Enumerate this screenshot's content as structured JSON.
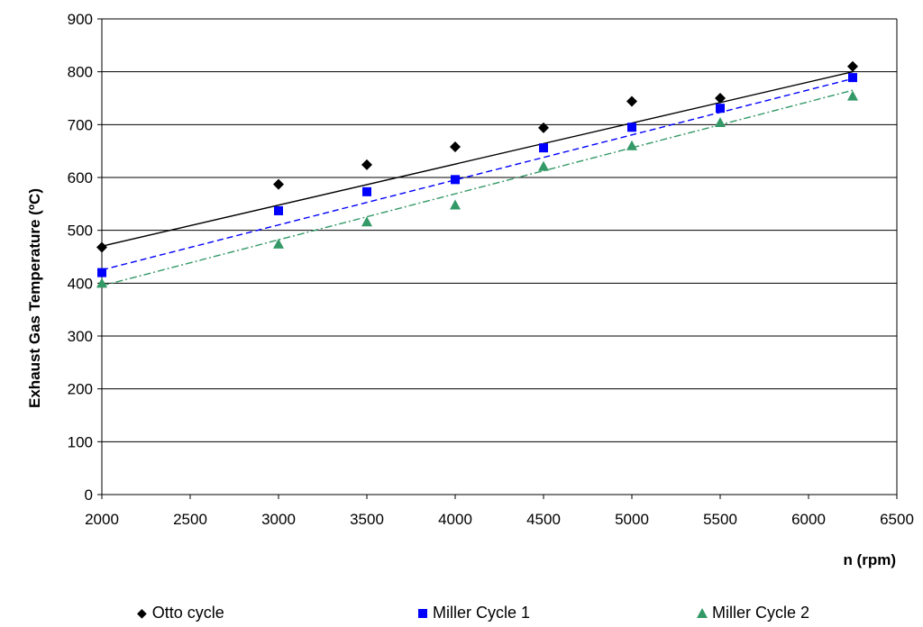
{
  "chart_data": {
    "type": "scatter",
    "title": "",
    "xlabel": "n (rpm)",
    "ylabel": "Exhaust Gas Temperature  (ºC)",
    "xlim": [
      2000,
      6500
    ],
    "ylim": [
      0,
      900
    ],
    "xticks": [
      2000,
      2500,
      3000,
      3500,
      4000,
      4500,
      5000,
      5500,
      6000,
      6500
    ],
    "yticks": [
      0,
      100,
      200,
      300,
      400,
      500,
      600,
      700,
      800,
      900
    ],
    "grid": "horizontal",
    "legend_position": "bottom",
    "series": [
      {
        "name": "Otto cycle",
        "marker": "diamond",
        "color": "#000000",
        "trendline": "solid",
        "x": [
          2000,
          3000,
          3500,
          4000,
          4500,
          5000,
          5500,
          6250
        ],
        "y": [
          468,
          587,
          624,
          658,
          694,
          744,
          750,
          810
        ],
        "trend": [
          [
            2000,
            470
          ],
          [
            6250,
            800
          ]
        ]
      },
      {
        "name": "Miller Cycle 1",
        "marker": "square",
        "color": "#0000ff",
        "trendline": "dashed",
        "x": [
          2000,
          3000,
          3500,
          4000,
          4500,
          5000,
          5500,
          6250
        ],
        "y": [
          420,
          537,
          573,
          596,
          656,
          695,
          731,
          789
        ],
        "trend": [
          [
            2000,
            425
          ],
          [
            6250,
            787
          ]
        ]
      },
      {
        "name": "Miller Cycle 2",
        "marker": "triangle",
        "color": "#339966",
        "trendline": "dashdot",
        "x": [
          2000,
          3000,
          3500,
          4000,
          4500,
          5000,
          5500,
          6250
        ],
        "y": [
          400,
          474,
          516,
          548,
          621,
          660,
          704,
          754
        ],
        "trend": [
          [
            2000,
            395
          ],
          [
            6250,
            765
          ]
        ]
      }
    ]
  }
}
